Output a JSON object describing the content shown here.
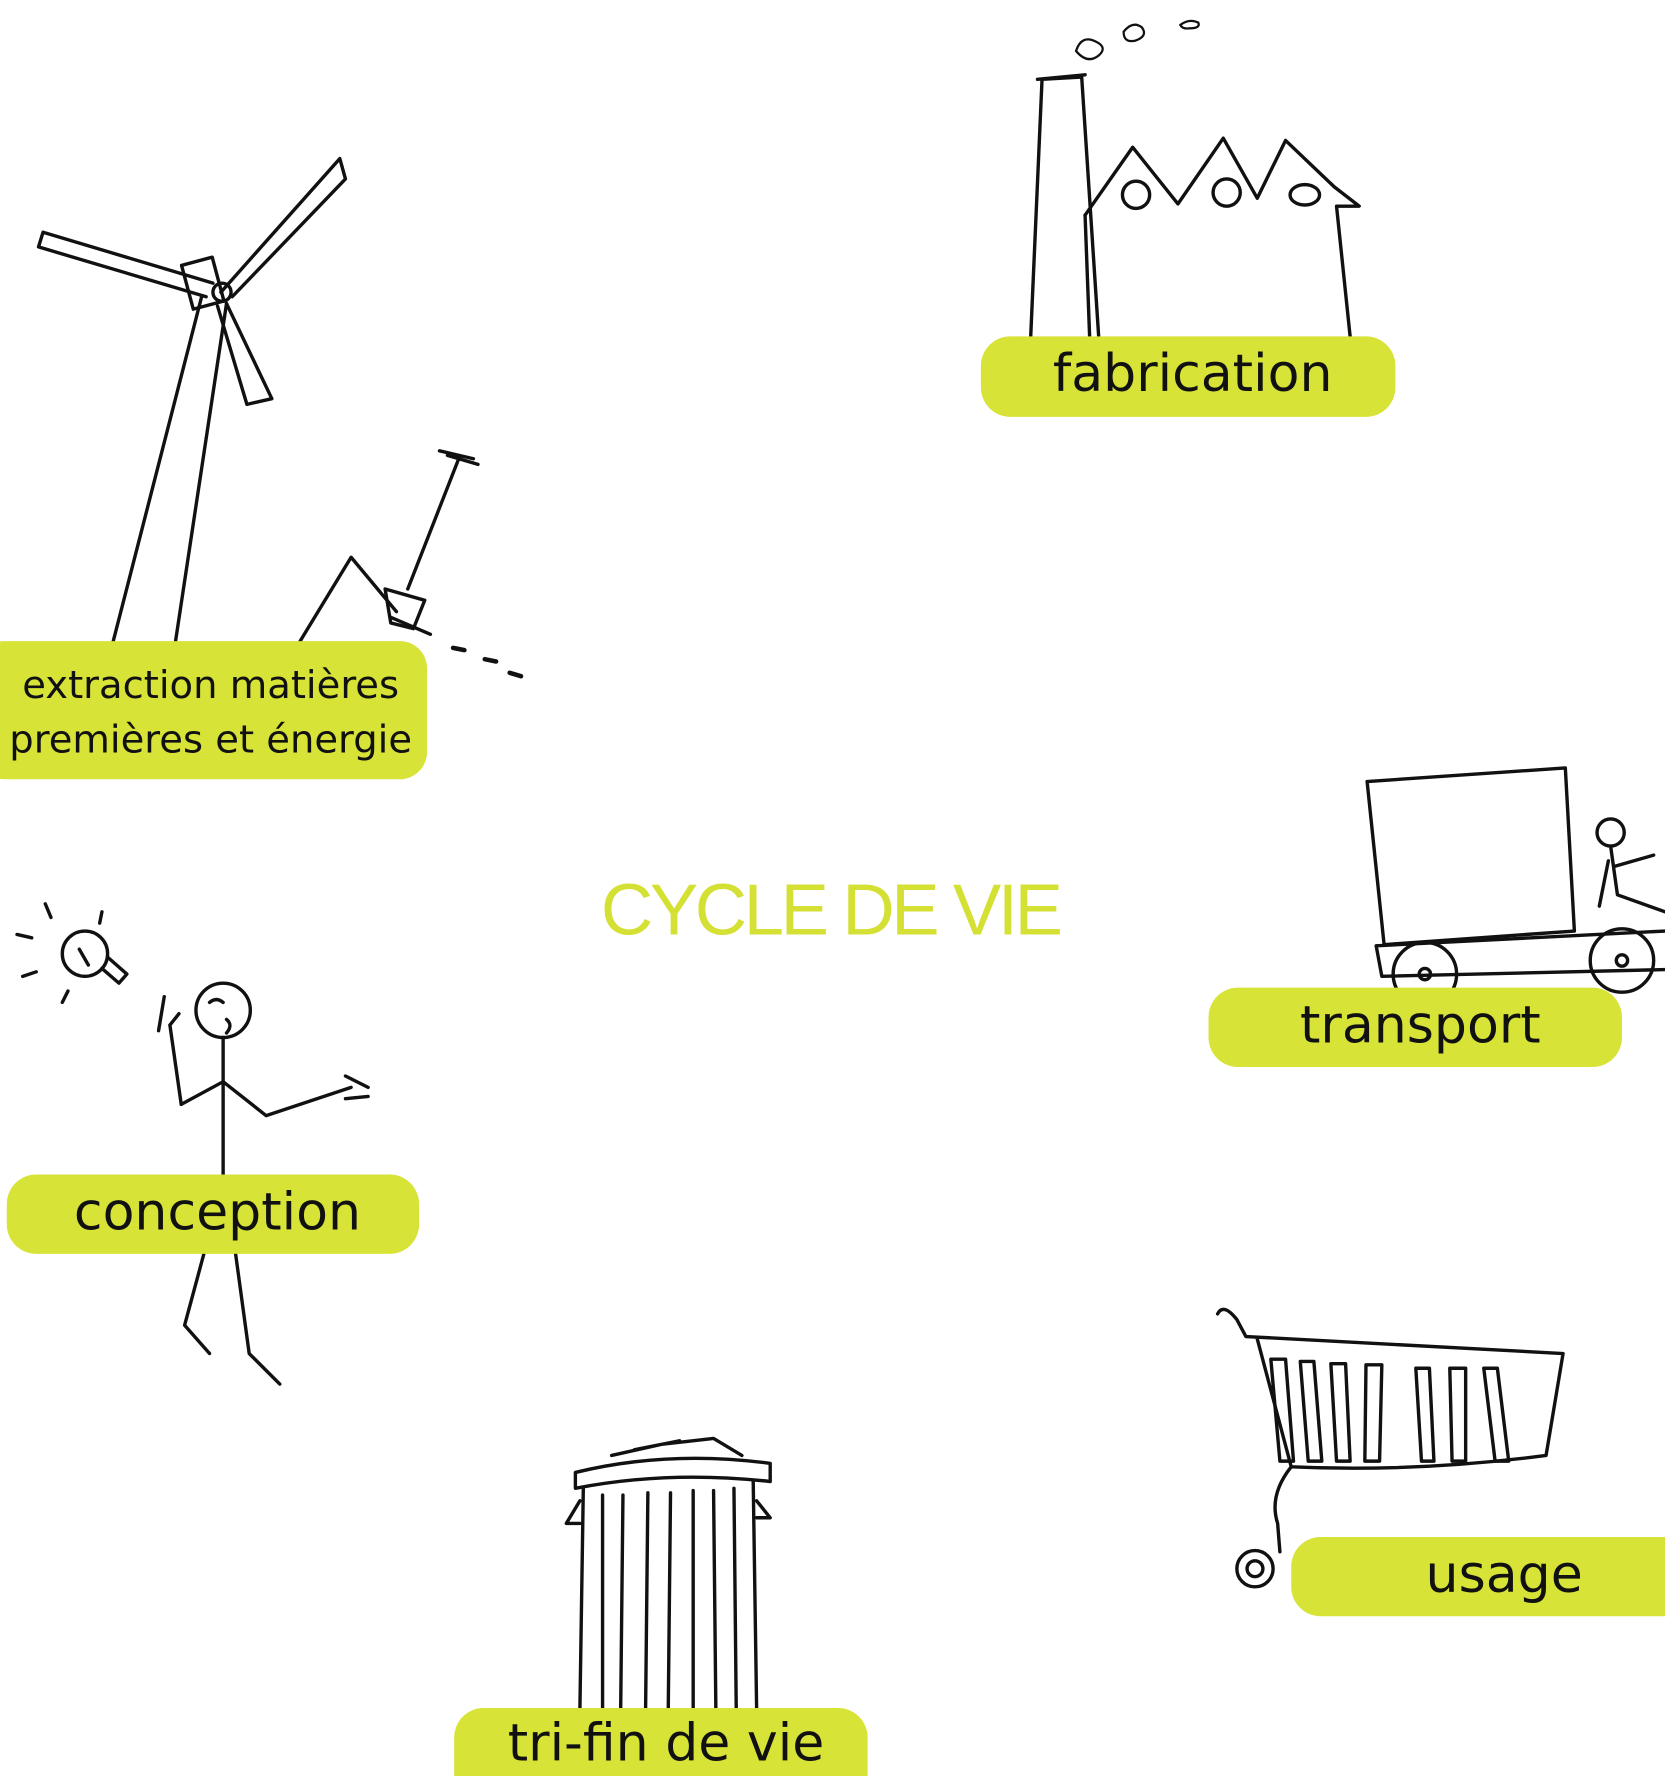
{
  "title": "CYCLE DE VIE",
  "stages": [
    {
      "lines": [
        "extraction matières",
        "premières et énergie"
      ]
    },
    {
      "lines": [
        "fabrication"
      ]
    },
    {
      "lines": [
        "transport"
      ]
    },
    {
      "lines": [
        "usage"
      ]
    },
    {
      "lines": [
        "tri-fin de vie"
      ]
    },
    {
      "lines": [
        "conception"
      ]
    }
  ]
}
